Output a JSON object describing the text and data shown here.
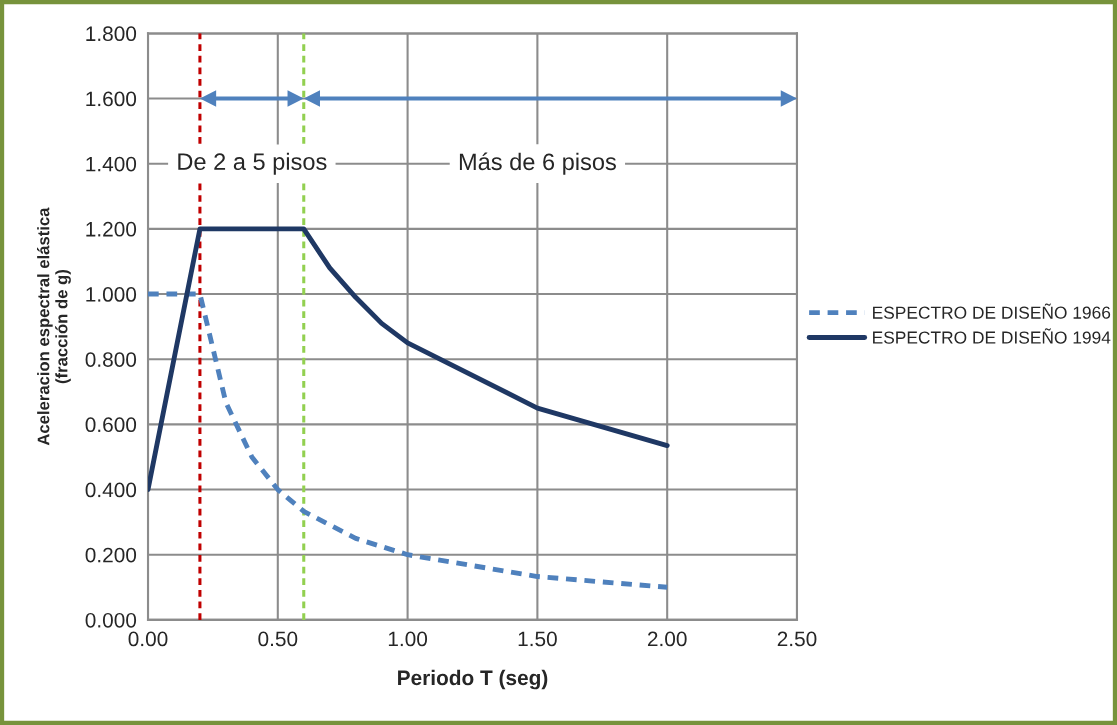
{
  "chart_data": {
    "type": "line",
    "xlabel": "Periodo T (seg)",
    "ylabel": "Aceleracion espectral elástica\n(fracción de g)",
    "series": [
      {
        "name": "ESPECTRO DE DISEÑO 1966",
        "color": "#4f81bd",
        "line_style": "dashed",
        "x": [
          0,
          0.2,
          0.3,
          0.4,
          0.5,
          0.6,
          0.8,
          1.0,
          1.5,
          2.0
        ],
        "values": [
          1.0,
          1.0,
          0.667,
          0.5,
          0.4,
          0.333,
          0.25,
          0.2,
          0.133,
          0.1
        ]
      },
      {
        "name": "ESPECTRO DE DISEÑO 1994",
        "color": "#1f3864",
        "line_style": "solid",
        "x": [
          0,
          0.2,
          0.6,
          0.7,
          0.8,
          0.9,
          1.0,
          1.5,
          2.0
        ],
        "values": [
          0.4,
          1.2,
          1.2,
          1.08,
          0.99,
          0.91,
          0.85,
          0.65,
          0.535
        ]
      }
    ],
    "ref_lines": [
      {
        "axis": "x",
        "value": 0.2,
        "label": null,
        "color": "#c00000",
        "line_style": "dashed"
      },
      {
        "axis": "x",
        "value": 0.6,
        "label": null,
        "color": "#92d050",
        "line_style": "dashed"
      }
    ],
    "annotations": [
      "De 2 a 5 pisos",
      "Más de 6 pisos"
    ],
    "xlim": [
      0,
      2.5
    ],
    "xticks": [
      {
        "value": 0,
        "label": "0.00"
      },
      {
        "value": 0.5,
        "label": "0.50"
      },
      {
        "value": 1.0,
        "label": "1.00"
      },
      {
        "value": 1.5,
        "label": "1.50"
      },
      {
        "value": 2.0,
        "label": "2.00"
      },
      {
        "value": 2.5,
        "label": "2.50"
      }
    ],
    "ylim": [
      0,
      1.8
    ],
    "yticks": [
      {
        "value": 0,
        "label": "0.000"
      },
      {
        "value": 0.2,
        "label": "0.200"
      },
      {
        "value": 0.4,
        "label": "0.400"
      },
      {
        "value": 0.6,
        "label": "0.600"
      },
      {
        "value": 0.8,
        "label": "0.800"
      },
      {
        "value": 1.0,
        "label": "1.000"
      },
      {
        "value": 1.2,
        "label": "1.200"
      },
      {
        "value": 1.4,
        "label": "1.400"
      },
      {
        "value": 1.6,
        "label": "1.600"
      },
      {
        "value": 1.8,
        "label": "1.800"
      }
    ],
    "grid": true,
    "legend": "right",
    "marker": "none"
  }
}
